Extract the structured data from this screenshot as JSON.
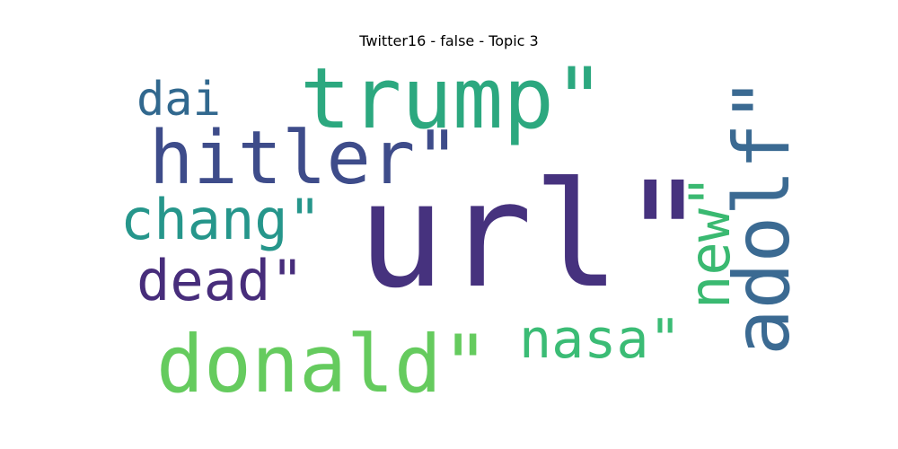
{
  "chart_data": {
    "type": "wordcloud",
    "title": "Twitter16 - false - Topic 3",
    "words": [
      {
        "text": "url\"",
        "weight": 1.0,
        "color": "#46327e",
        "rotated": false
      },
      {
        "text": "trump\"",
        "weight": 0.55,
        "color": "#2ca87f",
        "rotated": false
      },
      {
        "text": "hitler\"",
        "weight": 0.45,
        "color": "#3e4c8a",
        "rotated": false
      },
      {
        "text": "donald\"",
        "weight": 0.5,
        "color": "#65cb5e",
        "rotated": false
      },
      {
        "text": "adolf\"",
        "weight": 0.48,
        "color": "#3b6a92",
        "rotated": true
      },
      {
        "text": "new\"",
        "weight": 0.36,
        "color": "#3ab971",
        "rotated": true
      },
      {
        "text": "chang\"",
        "weight": 0.34,
        "color": "#26968b",
        "rotated": false
      },
      {
        "text": "dead\"",
        "weight": 0.34,
        "color": "#472d7b",
        "rotated": false
      },
      {
        "text": "nasa\"",
        "weight": 0.33,
        "color": "#3bbc75",
        "rotated": false
      },
      {
        "text": "dai",
        "weight": 0.28,
        "color": "#31688e",
        "rotated": false
      }
    ]
  }
}
